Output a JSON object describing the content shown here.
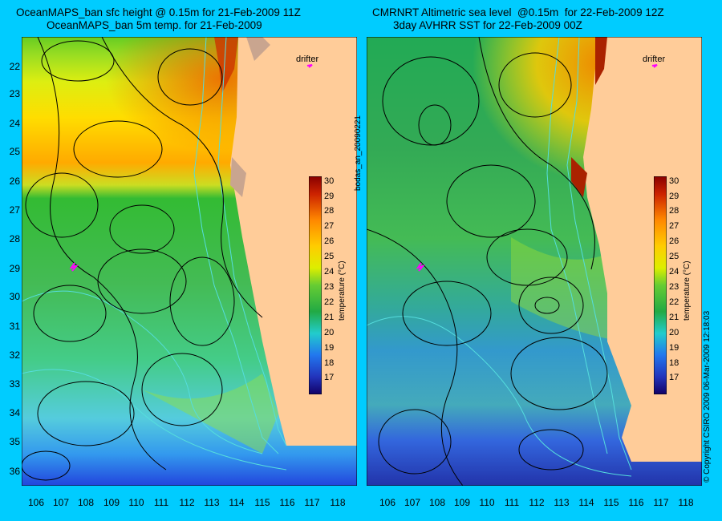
{
  "left_panel": {
    "title_line1": "OceanMAPS_ban sfc height @ 0.15m for 21-Feb-2009 11Z",
    "title_line2": "OceanMAPS_ban 5m temp. for 21-Feb-2009",
    "drifter_label": "drifter",
    "colorbar_title": "temperature (°C)"
  },
  "right_panel": {
    "title_line1": "CMRNRT Altimetric sea level  @0.15m  for 22-Feb-2009 12Z",
    "title_line2": "3day AVHRR SST for 22-Feb-2009 00Z",
    "drifter_label": "drifter",
    "colorbar_title": "temperature (°C)"
  },
  "side_text_middle": "bodas_an_20090221",
  "side_text_right": "© Copyright CSIRO 2009   06-Mar-2009 12:18:03",
  "latitude_ticks": [
    "22",
    "23",
    "24",
    "25",
    "26",
    "27",
    "28",
    "29",
    "30",
    "31",
    "32",
    "33",
    "34",
    "35",
    "36"
  ],
  "longitude_ticks": [
    "106",
    "107",
    "108",
    "109",
    "110",
    "111",
    "112",
    "113",
    "114",
    "115",
    "116",
    "117",
    "118"
  ],
  "colorbar_ticks": [
    "30",
    "29",
    "28",
    "27",
    "26",
    "25",
    "24",
    "23",
    "22",
    "21",
    "20",
    "19",
    "18",
    "17"
  ],
  "colors": {
    "background": "#00ccff",
    "land": "#ffcc99",
    "coast_fill": "#c9a58f",
    "contour": "#000000",
    "bathymetry": "#55dddd",
    "drifter": "#ff00ff"
  }
}
